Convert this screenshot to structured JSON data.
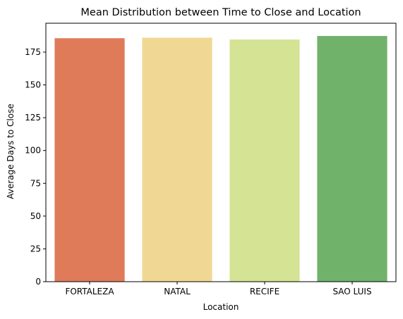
{
  "chart_data": {
    "type": "bar",
    "title": "Mean Distribution between Time to Close and Location",
    "xlabel": "Location",
    "ylabel": "Average Days to Close",
    "categories": [
      "FORTALEZA",
      "NATAL",
      "RECIFE",
      "SAO LUIS"
    ],
    "values": [
      185.6,
      186.0,
      184.6,
      187.3
    ],
    "colors": [
      "#e07b5a",
      "#f0d894",
      "#d4e394",
      "#71b26b"
    ],
    "ylim": [
      0,
      197
    ],
    "yticks": [
      0,
      25,
      50,
      75,
      100,
      125,
      150,
      175
    ],
    "grid": false,
    "legend": "none"
  }
}
